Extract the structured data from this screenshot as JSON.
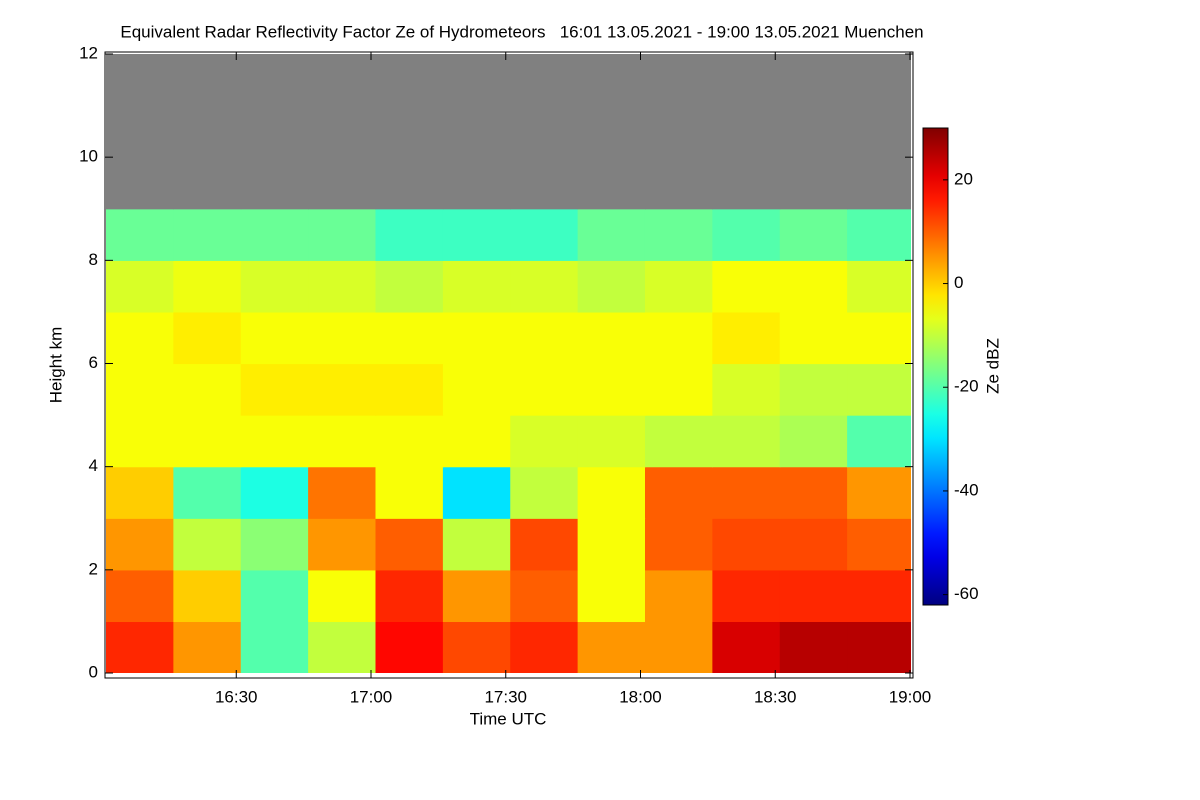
{
  "chart_data": {
    "type": "heatmap",
    "title": "Equivalent Radar Reflectivity Factor Ze of Hydrometeors   16:01 13.05.2021 - 19:00 13.05.2021 Muenchen",
    "x_label": "Time UTC",
    "y_label": "Height km",
    "colorbar_label": "Ze dBZ",
    "colormap": "jet",
    "missing_color": "#808080",
    "xbins": [
      961,
      976,
      991,
      1006,
      1021,
      1036,
      1051,
      1066,
      1081,
      1096,
      1111,
      1126,
      1141
    ],
    "ybins": [
      0,
      1,
      2,
      3,
      4,
      5,
      6,
      7,
      8,
      9,
      10,
      11,
      12
    ],
    "z": [
      [
        15,
        5,
        -20,
        -10,
        18,
        12,
        15,
        5,
        5,
        22,
        25,
        25
      ],
      [
        10,
        0,
        -20,
        -5,
        15,
        5,
        10,
        -5,
        5,
        15,
        15,
        15
      ],
      [
        5,
        -10,
        -15,
        5,
        10,
        -10,
        12,
        -5,
        10,
        12,
        12,
        10
      ],
      [
        0,
        -20,
        -25,
        8,
        -5,
        -30,
        -10,
        -5,
        10,
        10,
        10,
        5
      ],
      [
        -5,
        -5,
        -5,
        -5,
        -5,
        -5,
        -8,
        -8,
        -10,
        -10,
        -12,
        -20
      ],
      [
        -5,
        -5,
        -3,
        -3,
        -3,
        -5,
        -5,
        -5,
        -5,
        -8,
        -10,
        -10
      ],
      [
        -5,
        -3,
        -5,
        -5,
        -5,
        -5,
        -5,
        -5,
        -5,
        -3,
        -5,
        -5
      ],
      [
        -8,
        -6,
        -8,
        -8,
        -10,
        -8,
        -8,
        -10,
        -8,
        -5,
        -5,
        -8
      ],
      [
        -18,
        -18,
        -18,
        -18,
        -22,
        -22,
        -22,
        -18,
        -18,
        -20,
        -18,
        -20
      ],
      [
        null,
        null,
        null,
        null,
        null,
        null,
        null,
        null,
        null,
        null,
        null,
        null
      ],
      [
        null,
        null,
        null,
        null,
        null,
        null,
        null,
        null,
        null,
        null,
        null,
        null
      ],
      [
        null,
        null,
        null,
        null,
        null,
        null,
        null,
        null,
        null,
        null,
        null,
        null
      ]
    ],
    "xlim": [
      961,
      1140
    ],
    "ylim": [
      0,
      12
    ],
    "zlim": [
      -62,
      30
    ],
    "xticks": [
      {
        "value": 990,
        "label": "16:30"
      },
      {
        "value": 1020,
        "label": "17:00"
      },
      {
        "value": 1050,
        "label": "17:30"
      },
      {
        "value": 1080,
        "label": "18:00"
      },
      {
        "value": 1110,
        "label": "18:30"
      },
      {
        "value": 1140,
        "label": "19:00"
      }
    ],
    "yticks": [
      0,
      2,
      4,
      6,
      8,
      10,
      12
    ],
    "zticks": [
      -60,
      -40,
      -20,
      0,
      20
    ]
  }
}
